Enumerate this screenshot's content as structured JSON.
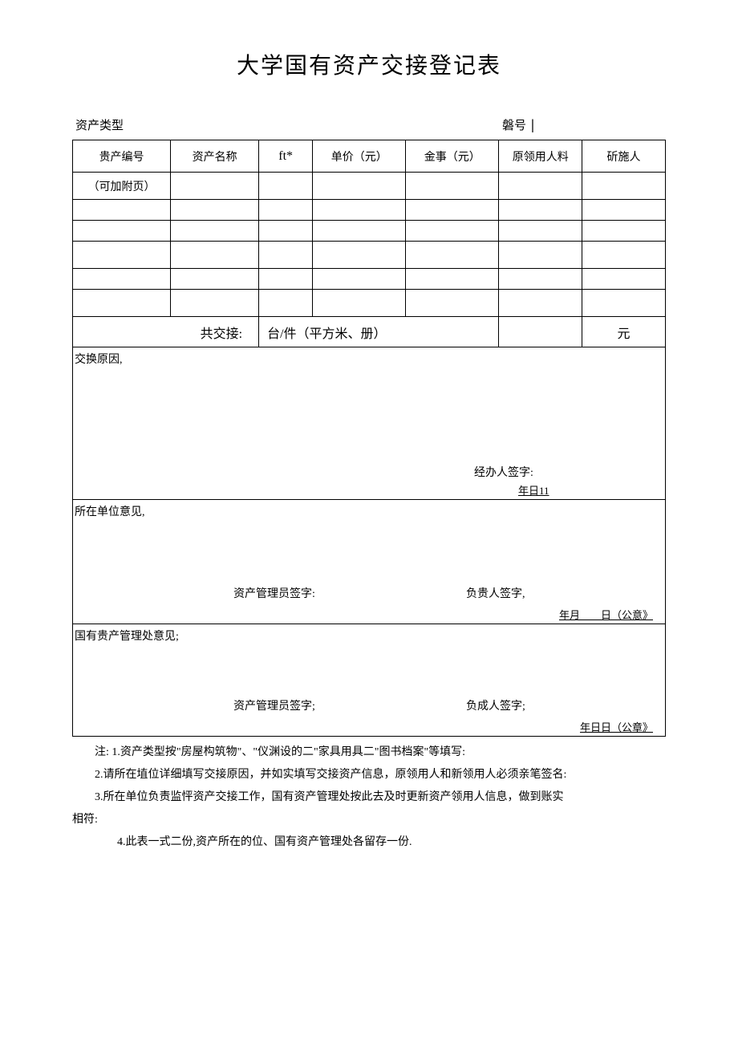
{
  "title": "大学国有资产交接登记表",
  "header": {
    "asset_type_label": "资产类型",
    "number_label": "磐号",
    "number_pipe": "|"
  },
  "table": {
    "headers": {
      "asset_no": "贵产编号",
      "asset_name": "资产名称",
      "ft": "ft*",
      "unit_price": "单价（元）",
      "amount": "金事（元）",
      "original_user": "原领用人料",
      "new_user": "斫施人"
    },
    "first_cell": "（可加附页）",
    "summary": {
      "label": "共交接:",
      "unit": "台/件（平方米、册）",
      "currency": "元"
    }
  },
  "sections": {
    "reason": {
      "label": "交换原因,",
      "agent_sign": "经办人签字:",
      "date": "年日11"
    },
    "unit_opinion": {
      "label": "所在单位意见,",
      "asset_mgr_sign": "资产管理员签字:",
      "responsible_sign": "负贵人签字,",
      "date": "年月        日（公意》"
    },
    "mgmt_opinion": {
      "label": "国有贵产管理处意见;",
      "asset_mgr_sign": "资产管理员签字;",
      "responsible_sign": "负成人签字;",
      "date": "年日日（公章》"
    }
  },
  "notes": {
    "n1": "注: 1.资产类型按\"房屋构筑物\"、\"仪渊设的二\"家具用具二\"图书档案\"等填写:",
    "n2": "2.请所在埴位详细填写交接原因，并如实填写交接资产信息，原领用人和新领用人必须亲笔签名:",
    "n3": "3.所在单位负责监怦资产交接工作，国有资产管理处按此去及时更新资产领用人信息，做到账实",
    "n3b": "相符:",
    "n4": "4.此表一式二份,资产所在的位、国有资产管理处各留存一份."
  }
}
